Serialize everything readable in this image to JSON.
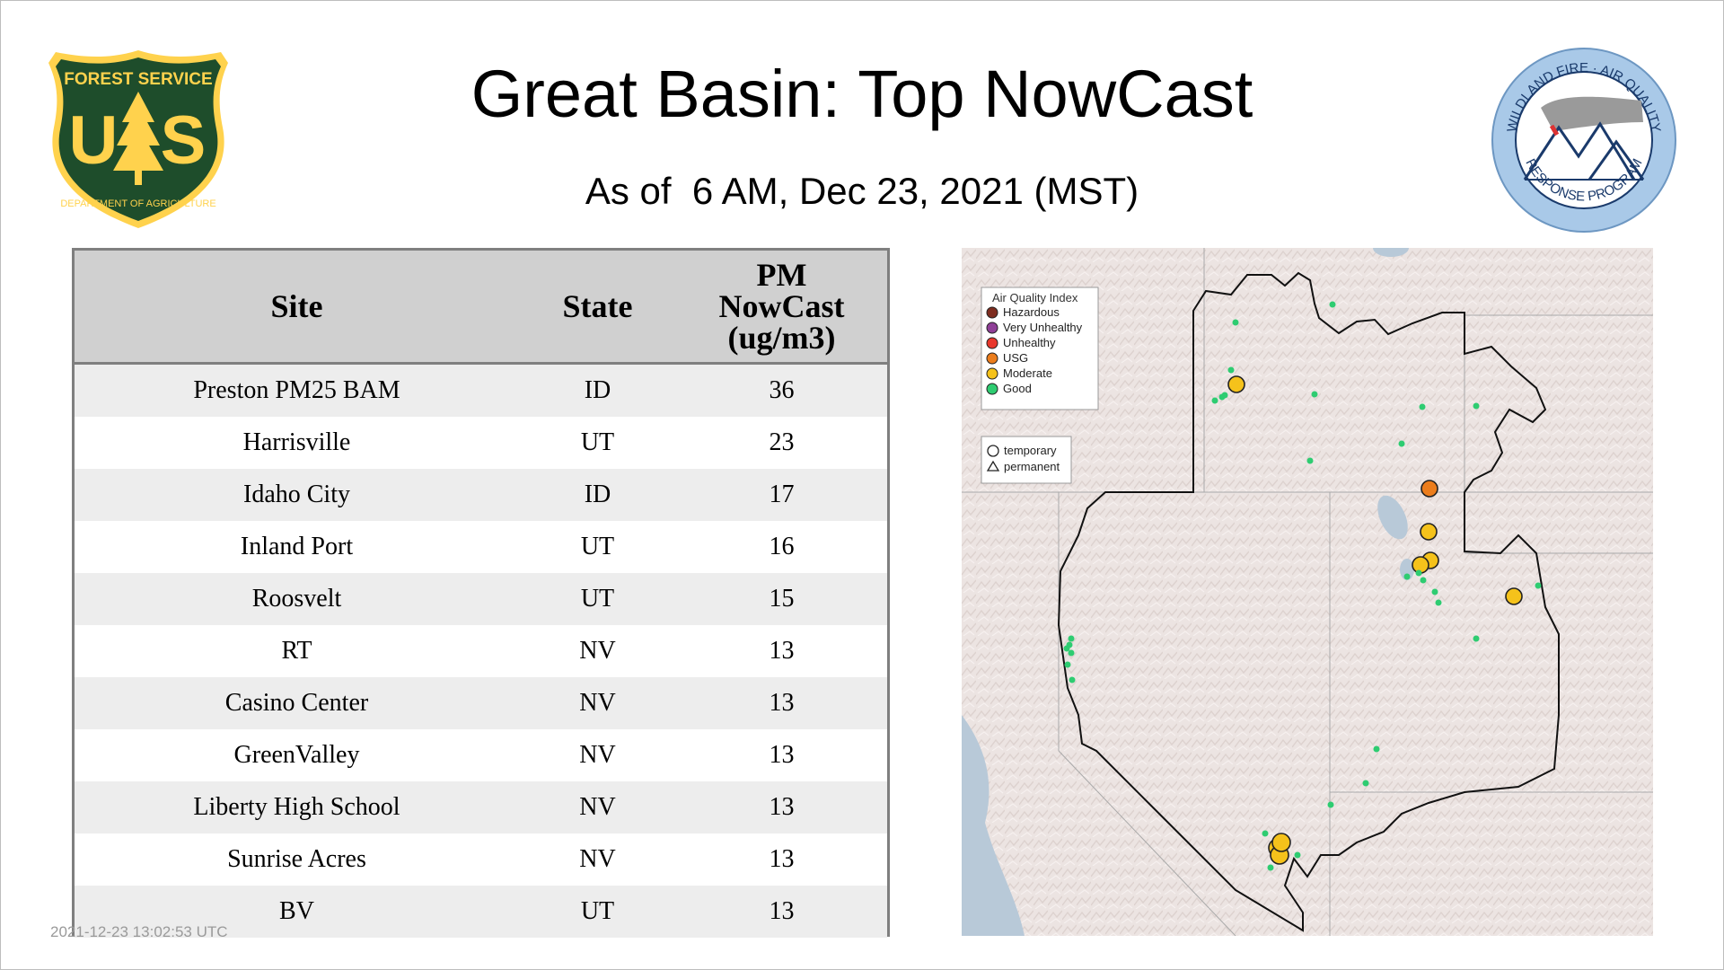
{
  "header": {
    "title": "Great Basin: Top NowCast",
    "subtitle": "As of  6 AM, Dec 23, 2021 (MST)"
  },
  "logos": {
    "forest_service": {
      "top_text": "FOREST SERVICE",
      "letters": "U S",
      "bottom_text": "DEPARTMENT OF AGRICULTURE",
      "colors": {
        "field": "#1e4d2b",
        "gold": "#ffd24d"
      }
    },
    "wildland": {
      "top_text": "WILDLAND FIRE · AIR QUALITY",
      "bottom_text": "RESPONSE PROGRAM",
      "colors": {
        "ring": "#a9c9e8",
        "text": "#1a3a6b"
      }
    }
  },
  "table": {
    "headers": {
      "site": "Site",
      "state": "State",
      "pm_line1": "PM",
      "pm_line2": "NowCast",
      "pm_line3": "(ug/m3)"
    },
    "rows": [
      {
        "site": "Preston PM25 BAM",
        "state": "ID",
        "value": "36"
      },
      {
        "site": "Harrisville",
        "state": "UT",
        "value": "23"
      },
      {
        "site": "Idaho City",
        "state": "ID",
        "value": "17"
      },
      {
        "site": "Inland Port",
        "state": "UT",
        "value": "16"
      },
      {
        "site": "Roosvelt",
        "state": "UT",
        "value": "15"
      },
      {
        "site": "RT",
        "state": "NV",
        "value": "13"
      },
      {
        "site": "Casino Center",
        "state": "NV",
        "value": "13"
      },
      {
        "site": "GreenValley",
        "state": "NV",
        "value": "13"
      },
      {
        "site": "Liberty High School",
        "state": "NV",
        "value": "13"
      },
      {
        "site": "Sunrise Acres",
        "state": "NV",
        "value": "13"
      },
      {
        "site": "BV",
        "state": "UT",
        "value": "13"
      }
    ]
  },
  "timestamp": "2021-12-23 13:02:53 UTC",
  "map": {
    "legend_title": "Air Quality Index",
    "categories": [
      {
        "label": "Hazardous",
        "color": "#7e2d20"
      },
      {
        "label": "Very Unhealthy",
        "color": "#8f3f97"
      },
      {
        "label": "Unhealthy",
        "color": "#e8372c"
      },
      {
        "label": "USG",
        "color": "#ec7d1c"
      },
      {
        "label": "Moderate",
        "color": "#f5c21b"
      },
      {
        "label": "Good",
        "color": "#2ecc71"
      }
    ],
    "shape_legend": [
      {
        "label": "temporary",
        "icon": "circle-icon"
      },
      {
        "label": "permanent",
        "icon": "triangle-icon"
      }
    ]
  }
}
